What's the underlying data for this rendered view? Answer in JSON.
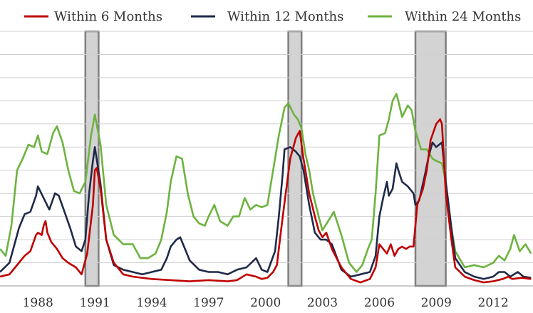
{
  "chart_data": {
    "type": "line",
    "title": "",
    "xlabel": "",
    "ylabel": "",
    "xlim": [
      1986.0,
      2014.1
    ],
    "ylim": [
      0,
      11
    ],
    "grid": "horizontal",
    "legend_position": "top",
    "x_ticks": [
      {
        "value": 1988,
        "label": "1988"
      },
      {
        "value": 1991,
        "label": "1991"
      },
      {
        "value": 1994,
        "label": "1994"
      },
      {
        "value": 1997,
        "label": "1997"
      },
      {
        "value": 2000,
        "label": "2000"
      },
      {
        "value": 2003,
        "label": "2003"
      },
      {
        "value": 2006,
        "label": "2006"
      },
      {
        "value": 2009,
        "label": "2009"
      },
      {
        "value": 2012,
        "label": "2012"
      }
    ],
    "recessions": [
      [
        1990.5,
        1991.2
      ],
      [
        2001.2,
        2001.9
      ],
      [
        2007.9,
        2009.5
      ]
    ],
    "series": [
      {
        "name": "Within 6 Months",
        "color": "#c00000",
        "points": [
          [
            1986.0,
            0.4
          ],
          [
            1986.5,
            0.5
          ],
          [
            1987.0,
            1.0
          ],
          [
            1987.3,
            1.3
          ],
          [
            1987.6,
            1.5
          ],
          [
            1987.9,
            2.2
          ],
          [
            1988.0,
            2.3
          ],
          [
            1988.2,
            2.2
          ],
          [
            1988.3,
            2.6
          ],
          [
            1988.4,
            2.8
          ],
          [
            1988.5,
            2.3
          ],
          [
            1988.7,
            1.9
          ],
          [
            1989.0,
            1.6
          ],
          [
            1989.3,
            1.2
          ],
          [
            1989.6,
            1.0
          ],
          [
            1990.0,
            0.8
          ],
          [
            1990.3,
            0.5
          ],
          [
            1990.6,
            1.4
          ],
          [
            1990.9,
            3.5
          ],
          [
            1991.0,
            5.0
          ],
          [
            1991.1,
            5.1
          ],
          [
            1991.3,
            4.2
          ],
          [
            1991.6,
            2.0
          ],
          [
            1992.0,
            1.0
          ],
          [
            1992.5,
            0.5
          ],
          [
            1993.0,
            0.4
          ],
          [
            1994.0,
            0.3
          ],
          [
            1995.0,
            0.25
          ],
          [
            1996.0,
            0.2
          ],
          [
            1997.0,
            0.25
          ],
          [
            1998.0,
            0.2
          ],
          [
            1998.5,
            0.25
          ],
          [
            1999.0,
            0.5
          ],
          [
            1999.5,
            0.4
          ],
          [
            1999.8,
            0.3
          ],
          [
            2000.1,
            0.35
          ],
          [
            2000.4,
            0.6
          ],
          [
            2000.6,
            0.9
          ],
          [
            2000.8,
            2.3
          ],
          [
            2001.0,
            3.6
          ],
          [
            2001.3,
            5.5
          ],
          [
            2001.6,
            6.4
          ],
          [
            2001.8,
            6.7
          ],
          [
            2002.0,
            5.5
          ],
          [
            2002.3,
            4.0
          ],
          [
            2002.6,
            3.0
          ],
          [
            2002.8,
            2.4
          ],
          [
            2003.0,
            2.1
          ],
          [
            2003.2,
            2.3
          ],
          [
            2003.5,
            1.6
          ],
          [
            2004.0,
            0.8
          ],
          [
            2004.5,
            0.3
          ],
          [
            2005.0,
            0.15
          ],
          [
            2005.5,
            0.3
          ],
          [
            2005.8,
            0.8
          ],
          [
            2006.0,
            1.8
          ],
          [
            2006.2,
            1.6
          ],
          [
            2006.4,
            1.4
          ],
          [
            2006.6,
            1.8
          ],
          [
            2006.8,
            1.3
          ],
          [
            2007.0,
            1.6
          ],
          [
            2007.2,
            1.7
          ],
          [
            2007.4,
            1.6
          ],
          [
            2007.6,
            1.7
          ],
          [
            2007.8,
            1.7
          ],
          [
            2008.0,
            3.5
          ],
          [
            2008.3,
            4.2
          ],
          [
            2008.5,
            5.0
          ],
          [
            2008.7,
            6.3
          ],
          [
            2009.0,
            7.0
          ],
          [
            2009.2,
            7.2
          ],
          [
            2009.3,
            7.0
          ],
          [
            2009.5,
            4.0
          ],
          [
            2009.8,
            2.0
          ],
          [
            2010.0,
            0.8
          ],
          [
            2010.5,
            0.4
          ],
          [
            2011.0,
            0.25
          ],
          [
            2011.5,
            0.15
          ],
          [
            2012.0,
            0.2
          ],
          [
            2012.5,
            0.3
          ],
          [
            2012.8,
            0.4
          ],
          [
            2013.0,
            0.3
          ],
          [
            2013.5,
            0.35
          ],
          [
            2014.0,
            0.3
          ]
        ]
      },
      {
        "name": "Within 12 Months",
        "color": "#1f2a4a",
        "points": [
          [
            1986.0,
            0.6
          ],
          [
            1986.5,
            1.0
          ],
          [
            1987.0,
            2.5
          ],
          [
            1987.3,
            3.1
          ],
          [
            1987.6,
            3.2
          ],
          [
            1987.9,
            3.9
          ],
          [
            1988.0,
            4.3
          ],
          [
            1988.3,
            3.8
          ],
          [
            1988.6,
            3.3
          ],
          [
            1988.9,
            4.0
          ],
          [
            1989.1,
            3.9
          ],
          [
            1989.4,
            3.2
          ],
          [
            1989.7,
            2.5
          ],
          [
            1990.0,
            1.7
          ],
          [
            1990.3,
            1.5
          ],
          [
            1990.5,
            2.0
          ],
          [
            1990.7,
            4.0
          ],
          [
            1990.9,
            5.4
          ],
          [
            1991.0,
            6.0
          ],
          [
            1991.3,
            4.4
          ],
          [
            1991.6,
            2.0
          ],
          [
            1992.0,
            0.9
          ],
          [
            1992.5,
            0.7
          ],
          [
            1993.0,
            0.6
          ],
          [
            1993.5,
            0.5
          ],
          [
            1994.0,
            0.6
          ],
          [
            1994.5,
            0.7
          ],
          [
            1994.8,
            1.2
          ],
          [
            1995.0,
            1.7
          ],
          [
            1995.3,
            2.0
          ],
          [
            1995.5,
            2.1
          ],
          [
            1995.8,
            1.5
          ],
          [
            1996.0,
            1.1
          ],
          [
            1996.5,
            0.7
          ],
          [
            1997.0,
            0.6
          ],
          [
            1997.5,
            0.6
          ],
          [
            1998.0,
            0.5
          ],
          [
            1998.5,
            0.7
          ],
          [
            1999.0,
            0.8
          ],
          [
            1999.5,
            1.2
          ],
          [
            1999.8,
            0.7
          ],
          [
            2000.1,
            0.6
          ],
          [
            2000.5,
            1.5
          ],
          [
            2000.7,
            3.0
          ],
          [
            2000.9,
            4.8
          ],
          [
            2001.0,
            5.9
          ],
          [
            2001.3,
            6.0
          ],
          [
            2001.6,
            5.8
          ],
          [
            2001.8,
            5.6
          ],
          [
            2002.0,
            5.0
          ],
          [
            2002.3,
            3.5
          ],
          [
            2002.6,
            2.3
          ],
          [
            2002.9,
            2.0
          ],
          [
            2003.2,
            2.0
          ],
          [
            2003.5,
            1.8
          ],
          [
            2004.0,
            0.7
          ],
          [
            2004.5,
            0.4
          ],
          [
            2005.0,
            0.5
          ],
          [
            2005.5,
            0.6
          ],
          [
            2005.8,
            1.3
          ],
          [
            2006.0,
            3.0
          ],
          [
            2006.2,
            3.8
          ],
          [
            2006.4,
            4.5
          ],
          [
            2006.5,
            3.9
          ],
          [
            2006.7,
            4.2
          ],
          [
            2006.9,
            5.3
          ],
          [
            2007.0,
            5.0
          ],
          [
            2007.2,
            4.5
          ],
          [
            2007.5,
            4.3
          ],
          [
            2007.8,
            4.0
          ],
          [
            2007.9,
            3.5
          ],
          [
            2008.1,
            3.7
          ],
          [
            2008.4,
            4.8
          ],
          [
            2008.6,
            5.6
          ],
          [
            2008.8,
            6.2
          ],
          [
            2009.0,
            6.0
          ],
          [
            2009.3,
            6.2
          ],
          [
            2009.5,
            4.5
          ],
          [
            2009.8,
            2.5
          ],
          [
            2010.0,
            1.2
          ],
          [
            2010.5,
            0.6
          ],
          [
            2011.0,
            0.4
          ],
          [
            2011.5,
            0.3
          ],
          [
            2012.0,
            0.4
          ],
          [
            2012.3,
            0.6
          ],
          [
            2012.6,
            0.6
          ],
          [
            2012.9,
            0.4
          ],
          [
            2013.3,
            0.6
          ],
          [
            2013.6,
            0.4
          ],
          [
            2014.0,
            0.35
          ]
        ]
      },
      {
        "name": "Within 24 Months",
        "color": "#6db33f",
        "points": [
          [
            1986.0,
            1.6
          ],
          [
            1986.3,
            1.3
          ],
          [
            1986.6,
            2.6
          ],
          [
            1986.9,
            5.0
          ],
          [
            1987.2,
            5.5
          ],
          [
            1987.5,
            6.1
          ],
          [
            1987.8,
            6.0
          ],
          [
            1988.0,
            6.5
          ],
          [
            1988.2,
            5.8
          ],
          [
            1988.5,
            5.7
          ],
          [
            1988.8,
            6.6
          ],
          [
            1989.0,
            6.9
          ],
          [
            1989.3,
            6.2
          ],
          [
            1989.6,
            5.0
          ],
          [
            1989.9,
            4.1
          ],
          [
            1990.2,
            4.0
          ],
          [
            1990.5,
            4.5
          ],
          [
            1990.8,
            6.5
          ],
          [
            1991.0,
            7.4
          ],
          [
            1991.3,
            6.1
          ],
          [
            1991.6,
            3.5
          ],
          [
            1992.0,
            2.2
          ],
          [
            1992.5,
            1.8
          ],
          [
            1993.0,
            1.8
          ],
          [
            1993.4,
            1.2
          ],
          [
            1993.8,
            1.2
          ],
          [
            1994.2,
            1.4
          ],
          [
            1994.5,
            2.0
          ],
          [
            1994.8,
            3.2
          ],
          [
            1995.0,
            4.5
          ],
          [
            1995.3,
            5.6
          ],
          [
            1995.6,
            5.5
          ],
          [
            1995.9,
            4.0
          ],
          [
            1996.2,
            3.0
          ],
          [
            1996.5,
            2.7
          ],
          [
            1996.8,
            2.6
          ],
          [
            1997.0,
            3.0
          ],
          [
            1997.3,
            3.5
          ],
          [
            1997.6,
            2.8
          ],
          [
            1998.0,
            2.6
          ],
          [
            1998.3,
            3.0
          ],
          [
            1998.6,
            3.0
          ],
          [
            1998.9,
            3.8
          ],
          [
            1999.2,
            3.3
          ],
          [
            1999.5,
            3.5
          ],
          [
            1999.8,
            3.4
          ],
          [
            2000.1,
            3.5
          ],
          [
            2000.4,
            5.0
          ],
          [
            2000.7,
            6.5
          ],
          [
            2001.0,
            7.7
          ],
          [
            2001.2,
            7.9
          ],
          [
            2001.5,
            7.4
          ],
          [
            2001.7,
            7.2
          ],
          [
            2001.9,
            6.8
          ],
          [
            2002.1,
            5.7
          ],
          [
            2002.3,
            5.0
          ],
          [
            2002.5,
            4.0
          ],
          [
            2002.8,
            3.0
          ],
          [
            2003.0,
            2.4
          ],
          [
            2003.3,
            2.8
          ],
          [
            2003.6,
            3.2
          ],
          [
            2004.0,
            2.2
          ],
          [
            2004.4,
            1.0
          ],
          [
            2004.8,
            0.6
          ],
          [
            2005.1,
            0.9
          ],
          [
            2005.4,
            1.6
          ],
          [
            2005.6,
            2.0
          ],
          [
            2005.8,
            4.0
          ],
          [
            2006.0,
            6.5
          ],
          [
            2006.3,
            6.6
          ],
          [
            2006.5,
            7.2
          ],
          [
            2006.7,
            8.0
          ],
          [
            2006.9,
            8.3
          ],
          [
            2007.0,
            8.0
          ],
          [
            2007.2,
            7.3
          ],
          [
            2007.5,
            7.8
          ],
          [
            2007.7,
            7.6
          ],
          [
            2007.9,
            6.7
          ],
          [
            2008.2,
            5.9
          ],
          [
            2008.5,
            5.9
          ],
          [
            2008.8,
            5.5
          ],
          [
            2009.0,
            5.4
          ],
          [
            2009.3,
            5.3
          ],
          [
            2009.5,
            4.5
          ],
          [
            2009.8,
            2.5
          ],
          [
            2010.0,
            1.5
          ],
          [
            2010.5,
            0.8
          ],
          [
            2011.0,
            0.9
          ],
          [
            2011.5,
            0.8
          ],
          [
            2012.0,
            1.0
          ],
          [
            2012.3,
            1.3
          ],
          [
            2012.6,
            1.1
          ],
          [
            2012.9,
            1.6
          ],
          [
            2013.1,
            2.2
          ],
          [
            2013.4,
            1.5
          ],
          [
            2013.7,
            1.8
          ],
          [
            2014.0,
            1.4
          ]
        ]
      }
    ]
  }
}
